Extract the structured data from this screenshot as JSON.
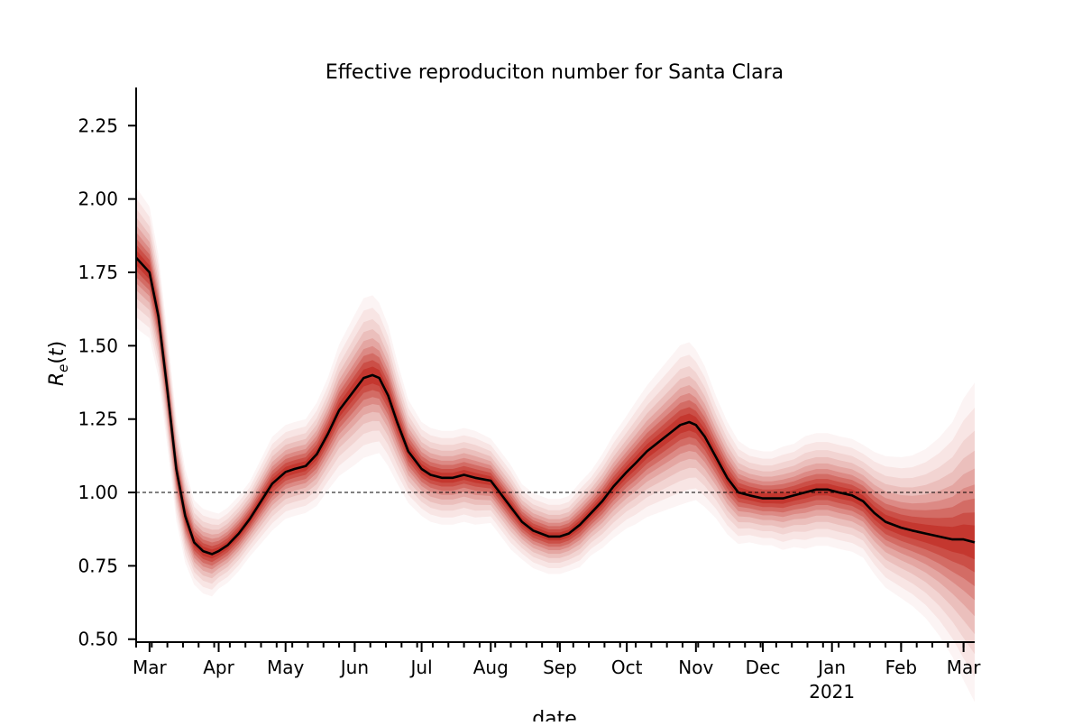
{
  "chart_data": {
    "type": "line",
    "title": "Effective reproduciton number for Santa Clara",
    "xlabel": "date",
    "ylabel": "R_e(t)",
    "ylim": [
      0.49,
      2.38
    ],
    "xlim": [
      "2020-02-24",
      "2021-03-06"
    ],
    "y_ticks": [
      {
        "value": 0.5,
        "label": "0.50"
      },
      {
        "value": 0.75,
        "label": "0.75"
      },
      {
        "value": 1.0,
        "label": "1.00"
      },
      {
        "value": 1.25,
        "label": "1.25"
      },
      {
        "value": 1.5,
        "label": "1.50"
      },
      {
        "value": 1.75,
        "label": "1.75"
      },
      {
        "value": 2.0,
        "label": "2.00"
      },
      {
        "value": 2.25,
        "label": "2.25"
      }
    ],
    "x_ticks": [
      {
        "date": "2020-03-01",
        "label": "Mar",
        "sublabel": ""
      },
      {
        "date": "2020-04-01",
        "label": "Apr",
        "sublabel": ""
      },
      {
        "date": "2020-05-01",
        "label": "May",
        "sublabel": ""
      },
      {
        "date": "2020-06-01",
        "label": "Jun",
        "sublabel": ""
      },
      {
        "date": "2020-07-01",
        "label": "Jul",
        "sublabel": ""
      },
      {
        "date": "2020-08-01",
        "label": "Aug",
        "sublabel": ""
      },
      {
        "date": "2020-09-01",
        "label": "Sep",
        "sublabel": ""
      },
      {
        "date": "2020-10-01",
        "label": "Oct",
        "sublabel": ""
      },
      {
        "date": "2020-11-01",
        "label": "Nov",
        "sublabel": ""
      },
      {
        "date": "2020-12-01",
        "label": "Dec",
        "sublabel": ""
      },
      {
        "date": "2021-01-01",
        "label": "Jan",
        "sublabel": "2021"
      },
      {
        "date": "2021-02-01",
        "label": "Feb",
        "sublabel": ""
      },
      {
        "date": "2021-03-01",
        "label": "Mar",
        "sublabel": ""
      }
    ],
    "reference_line": {
      "y": 1.0,
      "style": "dashed"
    },
    "series": [
      {
        "type": "median",
        "color": "#000000",
        "x": [
          "2020-02-24",
          "2020-03-01",
          "2020-03-05",
          "2020-03-09",
          "2020-03-13",
          "2020-03-17",
          "2020-03-21",
          "2020-03-25",
          "2020-03-29",
          "2020-04-01",
          "2020-04-05",
          "2020-04-10",
          "2020-04-15",
          "2020-04-20",
          "2020-04-25",
          "2020-05-01",
          "2020-05-05",
          "2020-05-10",
          "2020-05-15",
          "2020-05-20",
          "2020-05-25",
          "2020-06-01",
          "2020-06-05",
          "2020-06-09",
          "2020-06-12",
          "2020-06-16",
          "2020-06-20",
          "2020-06-25",
          "2020-07-01",
          "2020-07-05",
          "2020-07-10",
          "2020-07-15",
          "2020-07-20",
          "2020-07-25",
          "2020-08-01",
          "2020-08-05",
          "2020-08-10",
          "2020-08-15",
          "2020-08-20",
          "2020-08-27",
          "2020-09-01",
          "2020-09-05",
          "2020-09-10",
          "2020-09-15",
          "2020-09-20",
          "2020-09-25",
          "2020-10-01",
          "2020-10-05",
          "2020-10-10",
          "2020-10-15",
          "2020-10-20",
          "2020-10-25",
          "2020-10-29",
          "2020-11-01",
          "2020-11-05",
          "2020-11-10",
          "2020-11-15",
          "2020-11-20",
          "2020-11-25",
          "2020-12-01",
          "2020-12-05",
          "2020-12-10",
          "2020-12-15",
          "2020-12-20",
          "2020-12-25",
          "2020-12-30",
          "2021-01-04",
          "2021-01-10",
          "2021-01-15",
          "2021-01-20",
          "2021-01-25",
          "2021-02-01",
          "2021-02-06",
          "2021-02-12",
          "2021-02-18",
          "2021-02-24",
          "2021-03-01",
          "2021-03-06"
        ],
        "y": [
          1.8,
          1.75,
          1.6,
          1.35,
          1.08,
          0.92,
          0.83,
          0.8,
          0.79,
          0.8,
          0.82,
          0.86,
          0.91,
          0.97,
          1.03,
          1.07,
          1.08,
          1.09,
          1.13,
          1.2,
          1.28,
          1.35,
          1.39,
          1.4,
          1.39,
          1.33,
          1.24,
          1.14,
          1.08,
          1.06,
          1.05,
          1.05,
          1.06,
          1.05,
          1.04,
          1.0,
          0.95,
          0.9,
          0.87,
          0.85,
          0.85,
          0.86,
          0.89,
          0.93,
          0.97,
          1.02,
          1.07,
          1.1,
          1.14,
          1.17,
          1.2,
          1.23,
          1.24,
          1.23,
          1.19,
          1.12,
          1.05,
          1.0,
          0.99,
          0.98,
          0.98,
          0.98,
          0.99,
          1.0,
          1.01,
          1.01,
          1.0,
          0.99,
          0.97,
          0.93,
          0.9,
          0.88,
          0.87,
          0.86,
          0.85,
          0.84,
          0.84,
          0.83
        ]
      },
      {
        "type": "uncertainty-band",
        "color": "#c0281f",
        "spread": [
          0.15,
          0.14,
          0.13,
          0.12,
          0.11,
          0.1,
          0.09,
          0.09,
          0.09,
          0.08,
          0.08,
          0.08,
          0.08,
          0.09,
          0.1,
          0.1,
          0.1,
          0.1,
          0.11,
          0.12,
          0.14,
          0.16,
          0.17,
          0.17,
          0.16,
          0.15,
          0.13,
          0.11,
          0.1,
          0.1,
          0.1,
          0.1,
          0.1,
          0.1,
          0.09,
          0.09,
          0.09,
          0.08,
          0.08,
          0.08,
          0.08,
          0.08,
          0.09,
          0.09,
          0.1,
          0.11,
          0.12,
          0.13,
          0.14,
          0.15,
          0.16,
          0.17,
          0.17,
          0.16,
          0.15,
          0.13,
          0.12,
          0.11,
          0.1,
          0.1,
          0.1,
          0.11,
          0.11,
          0.12,
          0.12,
          0.12,
          0.12,
          0.12,
          0.12,
          0.13,
          0.14,
          0.15,
          0.16,
          0.18,
          0.21,
          0.25,
          0.3,
          0.34
        ]
      }
    ]
  }
}
